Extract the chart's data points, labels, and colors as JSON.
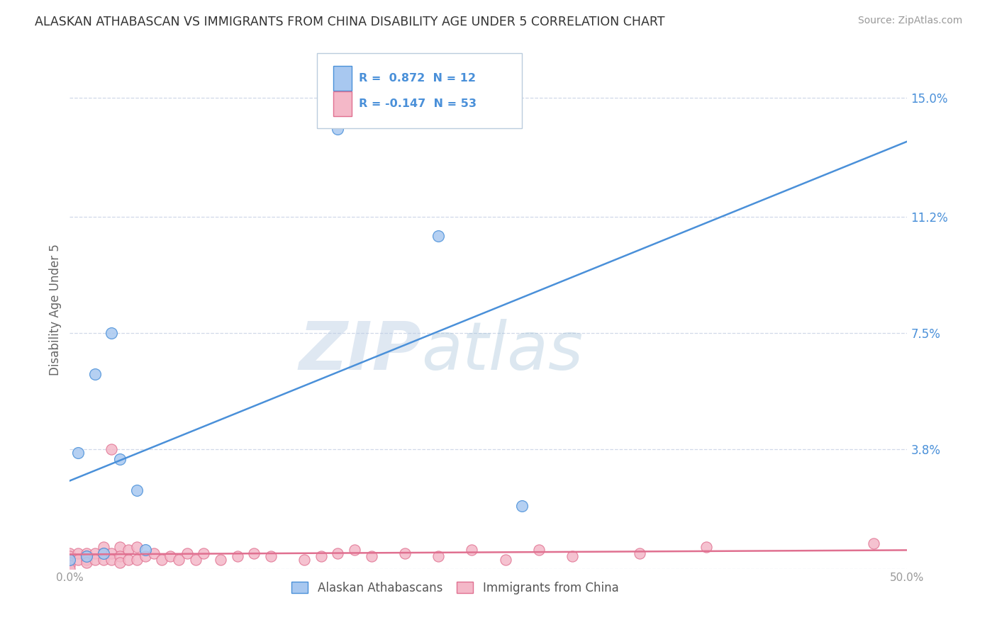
{
  "title": "ALASKAN ATHABASCAN VS IMMIGRANTS FROM CHINA DISABILITY AGE UNDER 5 CORRELATION CHART",
  "source": "Source: ZipAtlas.com",
  "ylabel": "Disability Age Under 5",
  "xlim": [
    0.0,
    0.5
  ],
  "ylim": [
    0.0,
    0.165
  ],
  "yticks": [
    0.0,
    0.038,
    0.075,
    0.112,
    0.15
  ],
  "ytick_labels": [
    "",
    "3.8%",
    "7.5%",
    "11.2%",
    "15.0%"
  ],
  "xticks": [
    0.0,
    0.1,
    0.2,
    0.3,
    0.4,
    0.5
  ],
  "xtick_labels": [
    "0.0%",
    "",
    "",
    "",
    "",
    "50.0%"
  ],
  "blue_R": 0.872,
  "blue_N": 12,
  "pink_R": -0.147,
  "pink_N": 53,
  "blue_color": "#a8c8f0",
  "pink_color": "#f4b8c8",
  "blue_line_color": "#4a90d9",
  "pink_line_color": "#e07090",
  "background_color": "#ffffff",
  "grid_color": "#d0d8e8",
  "watermark_zip": "ZIP",
  "watermark_atlas": "atlas",
  "legend_label_blue": "Alaskan Athabascans",
  "legend_label_pink": "Immigrants from China",
  "blue_scatter_x": [
    0.0,
    0.005,
    0.01,
    0.015,
    0.02,
    0.025,
    0.03,
    0.04,
    0.045,
    0.16,
    0.22,
    0.27
  ],
  "blue_scatter_y": [
    0.003,
    0.037,
    0.004,
    0.062,
    0.005,
    0.075,
    0.035,
    0.025,
    0.006,
    0.14,
    0.106,
    0.02
  ],
  "pink_scatter_x": [
    0.0,
    0.0,
    0.0,
    0.0,
    0.0,
    0.0,
    0.005,
    0.005,
    0.01,
    0.01,
    0.01,
    0.01,
    0.015,
    0.015,
    0.02,
    0.02,
    0.02,
    0.025,
    0.025,
    0.025,
    0.03,
    0.03,
    0.03,
    0.035,
    0.035,
    0.04,
    0.04,
    0.045,
    0.05,
    0.055,
    0.06,
    0.065,
    0.07,
    0.075,
    0.08,
    0.09,
    0.1,
    0.11,
    0.12,
    0.14,
    0.15,
    0.16,
    0.17,
    0.18,
    0.2,
    0.22,
    0.24,
    0.26,
    0.28,
    0.3,
    0.34,
    0.38,
    0.48
  ],
  "pink_scatter_y": [
    0.005,
    0.004,
    0.003,
    0.002,
    0.001,
    0.0,
    0.005,
    0.003,
    0.005,
    0.004,
    0.003,
    0.002,
    0.005,
    0.003,
    0.007,
    0.005,
    0.003,
    0.038,
    0.005,
    0.003,
    0.007,
    0.004,
    0.002,
    0.006,
    0.003,
    0.007,
    0.003,
    0.004,
    0.005,
    0.003,
    0.004,
    0.003,
    0.005,
    0.003,
    0.005,
    0.003,
    0.004,
    0.005,
    0.004,
    0.003,
    0.004,
    0.005,
    0.006,
    0.004,
    0.005,
    0.004,
    0.006,
    0.003,
    0.006,
    0.004,
    0.005,
    0.007,
    0.008
  ]
}
